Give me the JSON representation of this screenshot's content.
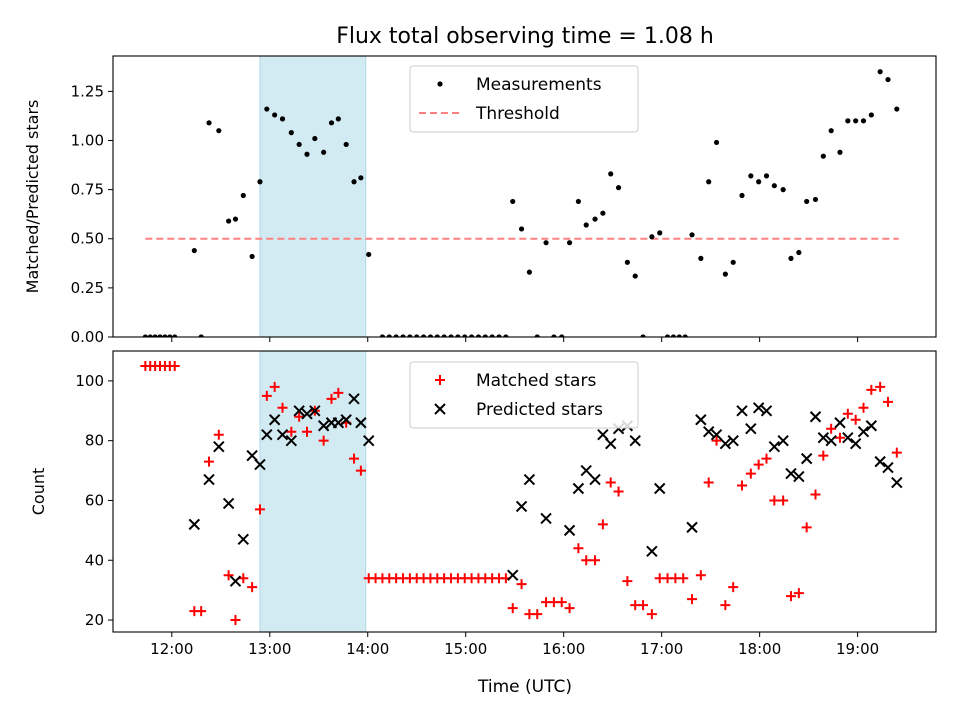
{
  "figure": {
    "title": "Flux total observing time = 1.08 h",
    "xlabel": "Time (UTC)"
  },
  "colors": {
    "measurement": "#000000",
    "threshold": "#ff8080",
    "shade": "#add8e6",
    "matched": "#ff0000",
    "predicted": "#000000"
  },
  "chart_data": [
    {
      "type": "scatter",
      "title": "Flux total observing time = 1.08 h",
      "xlabel": "",
      "ylabel": "Matched/Predicted stars",
      "xlim": [
        11.4,
        19.8
      ],
      "ylim": [
        0.0,
        1.43
      ],
      "x_ticks": [
        "12:00",
        "13:00",
        "14:00",
        "15:00",
        "16:00",
        "17:00",
        "18:00",
        "19:00"
      ],
      "y_ticks": [
        "0.00",
        "0.25",
        "0.50",
        "0.75",
        "1.00",
        "1.25"
      ],
      "legend_position": "top-center",
      "shaded_span": [
        12.9,
        13.98
      ],
      "threshold": {
        "name": "Threshold",
        "value": 0.5,
        "x_range": [
          11.73,
          19.42
        ]
      },
      "series": [
        {
          "name": "Measurements",
          "points": [
            [
              11.73,
              0
            ],
            [
              11.78,
              0
            ],
            [
              11.83,
              0
            ],
            [
              11.88,
              0
            ],
            [
              11.93,
              0
            ],
            [
              11.98,
              0
            ],
            [
              12.03,
              0
            ],
            [
              12.23,
              0.44
            ],
            [
              12.3,
              0
            ],
            [
              12.38,
              1.09
            ],
            [
              12.48,
              1.05
            ],
            [
              12.58,
              0.59
            ],
            [
              12.65,
              0.6
            ],
            [
              12.73,
              0.72
            ],
            [
              12.82,
              0.41
            ],
            [
              12.9,
              0.79
            ],
            [
              12.97,
              1.16
            ],
            [
              13.05,
              1.13
            ],
            [
              13.13,
              1.11
            ],
            [
              13.22,
              1.04
            ],
            [
              13.3,
              0.98
            ],
            [
              13.38,
              0.93
            ],
            [
              13.46,
              1.01
            ],
            [
              13.55,
              0.94
            ],
            [
              13.63,
              1.09
            ],
            [
              13.7,
              1.11
            ],
            [
              13.78,
              0.98
            ],
            [
              13.86,
              0.79
            ],
            [
              13.93,
              0.81
            ],
            [
              14.01,
              0.42
            ],
            [
              14.15,
              0
            ],
            [
              14.22,
              0
            ],
            [
              14.29,
              0
            ],
            [
              14.36,
              0
            ],
            [
              14.43,
              0
            ],
            [
              14.5,
              0
            ],
            [
              14.57,
              0
            ],
            [
              14.64,
              0
            ],
            [
              14.71,
              0
            ],
            [
              14.78,
              0
            ],
            [
              14.85,
              0
            ],
            [
              14.92,
              0
            ],
            [
              14.99,
              0
            ],
            [
              15.06,
              0
            ],
            [
              15.13,
              0
            ],
            [
              15.2,
              0
            ],
            [
              15.27,
              0
            ],
            [
              15.34,
              0
            ],
            [
              15.41,
              0
            ],
            [
              15.48,
              0.69
            ],
            [
              15.57,
              0.55
            ],
            [
              15.65,
              0.33
            ],
            [
              15.73,
              0
            ],
            [
              15.82,
              0.48
            ],
            [
              15.9,
              0
            ],
            [
              15.98,
              0
            ],
            [
              16.06,
              0.48
            ],
            [
              16.15,
              0.69
            ],
            [
              16.23,
              0.57
            ],
            [
              16.32,
              0.6
            ],
            [
              16.4,
              0.63
            ],
            [
              16.48,
              0.83
            ],
            [
              16.56,
              0.76
            ],
            [
              16.65,
              0.38
            ],
            [
              16.73,
              0.31
            ],
            [
              16.81,
              0
            ],
            [
              16.9,
              0.51
            ],
            [
              16.98,
              0.53
            ],
            [
              17.06,
              0
            ],
            [
              17.12,
              0
            ],
            [
              17.18,
              0
            ],
            [
              17.24,
              0
            ],
            [
              17.31,
              0.52
            ],
            [
              17.4,
              0.4
            ],
            [
              17.48,
              0.79
            ],
            [
              17.56,
              0.99
            ],
            [
              17.65,
              0.32
            ],
            [
              17.73,
              0.38
            ],
            [
              17.82,
              0.72
            ],
            [
              17.91,
              0.82
            ],
            [
              17.99,
              0.79
            ],
            [
              18.07,
              0.82
            ],
            [
              18.15,
              0.77
            ],
            [
              18.24,
              0.75
            ],
            [
              18.32,
              0.4
            ],
            [
              18.4,
              0.43
            ],
            [
              18.48,
              0.69
            ],
            [
              18.57,
              0.7
            ],
            [
              18.65,
              0.92
            ],
            [
              18.73,
              1.05
            ],
            [
              18.82,
              0.94
            ],
            [
              18.9,
              1.1
            ],
            [
              18.98,
              1.1
            ],
            [
              19.06,
              1.1
            ],
            [
              19.14,
              1.13
            ],
            [
              19.23,
              1.35
            ],
            [
              19.31,
              1.31
            ],
            [
              19.4,
              1.16
            ]
          ]
        }
      ]
    },
    {
      "type": "scatter",
      "title": "",
      "xlabel": "Time (UTC)",
      "ylabel": "Count",
      "xlim": [
        11.4,
        19.8
      ],
      "ylim": [
        16,
        110
      ],
      "x_ticks": [
        "12:00",
        "13:00",
        "14:00",
        "15:00",
        "16:00",
        "17:00",
        "18:00",
        "19:00"
      ],
      "y_ticks": [
        "20",
        "40",
        "60",
        "80",
        "100"
      ],
      "legend_position": "top-center",
      "shaded_span": [
        12.9,
        13.98
      ],
      "series": [
        {
          "name": "Matched stars",
          "marker": "+",
          "points": [
            [
              11.73,
              105
            ],
            [
              11.78,
              105
            ],
            [
              11.83,
              105
            ],
            [
              11.88,
              105
            ],
            [
              11.93,
              105
            ],
            [
              11.98,
              105
            ],
            [
              12.03,
              105
            ],
            [
              12.23,
              23
            ],
            [
              12.3,
              23
            ],
            [
              12.38,
              73
            ],
            [
              12.48,
              82
            ],
            [
              12.58,
              35
            ],
            [
              12.65,
              20
            ],
            [
              12.73,
              34
            ],
            [
              12.82,
              31
            ],
            [
              12.9,
              57
            ],
            [
              12.97,
              95
            ],
            [
              13.05,
              98
            ],
            [
              13.13,
              91
            ],
            [
              13.22,
              83
            ],
            [
              13.3,
              88
            ],
            [
              13.38,
              83
            ],
            [
              13.46,
              90
            ],
            [
              13.55,
              80
            ],
            [
              13.63,
              94
            ],
            [
              13.7,
              96
            ],
            [
              13.78,
              86
            ],
            [
              13.86,
              74
            ],
            [
              13.93,
              70
            ],
            [
              14.01,
              34
            ],
            [
              14.08,
              34
            ],
            [
              14.15,
              34
            ],
            [
              14.22,
              34
            ],
            [
              14.29,
              34
            ],
            [
              14.36,
              34
            ],
            [
              14.43,
              34
            ],
            [
              14.5,
              34
            ],
            [
              14.57,
              34
            ],
            [
              14.64,
              34
            ],
            [
              14.71,
              34
            ],
            [
              14.78,
              34
            ],
            [
              14.85,
              34
            ],
            [
              14.92,
              34
            ],
            [
              14.99,
              34
            ],
            [
              15.06,
              34
            ],
            [
              15.13,
              34
            ],
            [
              15.2,
              34
            ],
            [
              15.27,
              34
            ],
            [
              15.34,
              34
            ],
            [
              15.41,
              34
            ],
            [
              15.48,
              24
            ],
            [
              15.57,
              32
            ],
            [
              15.65,
              22
            ],
            [
              15.73,
              22
            ],
            [
              15.82,
              26
            ],
            [
              15.9,
              26
            ],
            [
              15.98,
              26
            ],
            [
              16.06,
              24
            ],
            [
              16.15,
              44
            ],
            [
              16.23,
              40
            ],
            [
              16.32,
              40
            ],
            [
              16.4,
              52
            ],
            [
              16.48,
              66
            ],
            [
              16.56,
              63
            ],
            [
              16.65,
              33
            ],
            [
              16.73,
              25
            ],
            [
              16.81,
              25
            ],
            [
              16.9,
              22
            ],
            [
              16.98,
              34
            ],
            [
              17.06,
              34
            ],
            [
              17.14,
              34
            ],
            [
              17.22,
              34
            ],
            [
              17.31,
              27
            ],
            [
              17.4,
              35
            ],
            [
              17.48,
              66
            ],
            [
              17.56,
              80
            ],
            [
              17.65,
              25
            ],
            [
              17.73,
              31
            ],
            [
              17.82,
              65
            ],
            [
              17.91,
              69
            ],
            [
              17.99,
              72
            ],
            [
              18.07,
              74
            ],
            [
              18.15,
              60
            ],
            [
              18.24,
              60
            ],
            [
              18.32,
              28
            ],
            [
              18.4,
              29
            ],
            [
              18.48,
              51
            ],
            [
              18.57,
              62
            ],
            [
              18.65,
              75
            ],
            [
              18.73,
              84
            ],
            [
              18.82,
              81
            ],
            [
              18.9,
              89
            ],
            [
              18.98,
              87
            ],
            [
              19.06,
              91
            ],
            [
              19.14,
              97
            ],
            [
              19.23,
              98
            ],
            [
              19.31,
              93
            ],
            [
              19.4,
              76
            ]
          ]
        },
        {
          "name": "Predicted stars",
          "marker": "x",
          "points": [
            [
              12.23,
              52
            ],
            [
              12.38,
              67
            ],
            [
              12.48,
              78
            ],
            [
              12.58,
              59
            ],
            [
              12.65,
              33
            ],
            [
              12.73,
              47
            ],
            [
              12.82,
              75
            ],
            [
              12.9,
              72
            ],
            [
              12.97,
              82
            ],
            [
              13.05,
              87
            ],
            [
              13.13,
              82
            ],
            [
              13.22,
              80
            ],
            [
              13.3,
              90
            ],
            [
              13.38,
              89
            ],
            [
              13.46,
              90
            ],
            [
              13.55,
              85
            ],
            [
              13.63,
              86
            ],
            [
              13.7,
              86
            ],
            [
              13.78,
              87
            ],
            [
              13.86,
              94
            ],
            [
              13.93,
              86
            ],
            [
              14.01,
              80
            ],
            [
              15.48,
              35
            ],
            [
              15.57,
              58
            ],
            [
              15.65,
              67
            ],
            [
              15.82,
              54
            ],
            [
              16.06,
              50
            ],
            [
              16.15,
              64
            ],
            [
              16.23,
              70
            ],
            [
              16.32,
              67
            ],
            [
              16.4,
              82
            ],
            [
              16.48,
              79
            ],
            [
              16.56,
              84
            ],
            [
              16.65,
              85
            ],
            [
              16.73,
              80
            ],
            [
              16.9,
              43
            ],
            [
              16.98,
              64
            ],
            [
              17.31,
              51
            ],
            [
              17.4,
              87
            ],
            [
              17.48,
              83
            ],
            [
              17.56,
              82
            ],
            [
              17.65,
              79
            ],
            [
              17.73,
              80
            ],
            [
              17.82,
              90
            ],
            [
              17.91,
              84
            ],
            [
              17.99,
              91
            ],
            [
              18.07,
              90
            ],
            [
              18.15,
              78
            ],
            [
              18.24,
              80
            ],
            [
              18.32,
              69
            ],
            [
              18.4,
              68
            ],
            [
              18.48,
              74
            ],
            [
              18.57,
              88
            ],
            [
              18.65,
              81
            ],
            [
              18.73,
              80
            ],
            [
              18.82,
              86
            ],
            [
              18.9,
              81
            ],
            [
              18.98,
              79
            ],
            [
              19.06,
              83
            ],
            [
              19.14,
              85
            ],
            [
              19.23,
              73
            ],
            [
              19.31,
              71
            ],
            [
              19.4,
              66
            ]
          ]
        }
      ]
    }
  ]
}
